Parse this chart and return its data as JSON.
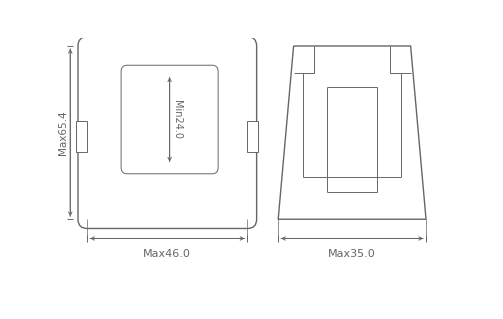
{
  "bg_color": "#ffffff",
  "line_color": "#666666",
  "lw_main": 1.0,
  "lw_thin": 0.7,
  "figsize": [
    5.03,
    3.19
  ],
  "dpi": 100,
  "labels": {
    "height": "Max65.4",
    "width_left": "Max46.0",
    "width_right": "Max35.0",
    "min_hole": "Min24.0"
  }
}
